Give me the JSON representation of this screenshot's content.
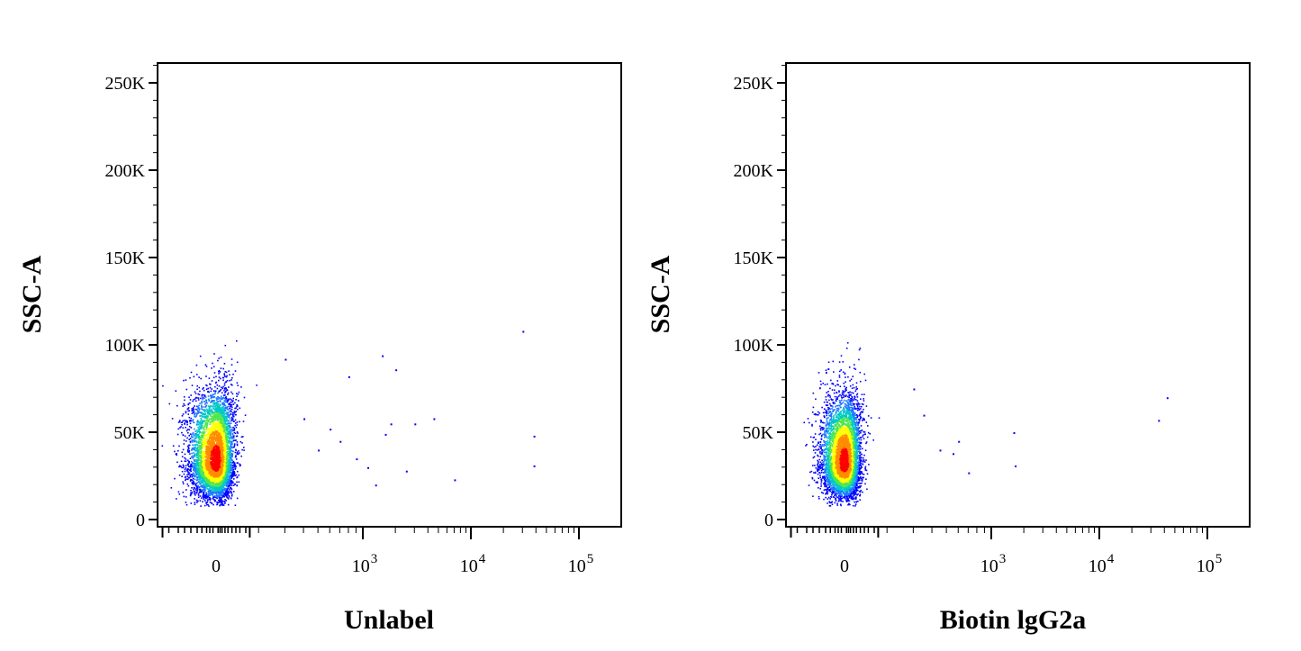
{
  "chart_data": [
    {
      "type": "scatter",
      "title": "",
      "xlabel": "Unlabel",
      "ylabel": "SSC-A",
      "x_scale": "biexponential",
      "y_ticks": [
        {
          "value": 0,
          "label": "0"
        },
        {
          "value": 50000,
          "label": "50K"
        },
        {
          "value": 100000,
          "label": "100K"
        },
        {
          "value": 150000,
          "label": "150K"
        },
        {
          "value": 200000,
          "label": "200K"
        },
        {
          "value": 250000,
          "label": "250K"
        }
      ],
      "x_ticks": [
        {
          "value": 0,
          "base": "0",
          "exp": ""
        },
        {
          "value": 1000,
          "base": "10",
          "exp": "3"
        },
        {
          "value": 10000,
          "base": "10",
          "exp": "4"
        },
        {
          "value": 100000,
          "base": "10",
          "exp": "5"
        }
      ],
      "ylim": [
        0,
        262144
      ],
      "population": {
        "x_center": 0,
        "y_center": 33000,
        "x_spread": 40,
        "y_spread": 14000,
        "events": 6000
      },
      "outliers": [
        [
          400,
          58000
        ],
        [
          600,
          52000
        ],
        [
          700,
          45000
        ],
        [
          800,
          82000
        ],
        [
          900,
          35000
        ],
        [
          1100,
          30000
        ],
        [
          1500,
          94000
        ],
        [
          1800,
          55000
        ],
        [
          2000,
          86000
        ],
        [
          2500,
          28000
        ],
        [
          3000,
          55000
        ],
        [
          4500,
          58000
        ],
        [
          7000,
          23000
        ],
        [
          30000,
          108000
        ],
        [
          38000,
          48000
        ],
        [
          38000,
          31000
        ],
        [
          500,
          40000
        ],
        [
          1300,
          20000
        ],
        [
          1600,
          49000
        ],
        [
          300,
          92000
        ]
      ],
      "colors": {
        "low": "#0000ff",
        "mid": "#00c8c8",
        "high": "#ffff00",
        "peak": "#ff0000"
      }
    },
    {
      "type": "scatter",
      "title": "",
      "xlabel": "Biotin lgG2a",
      "ylabel": "SSC-A",
      "x_scale": "biexponential",
      "y_ticks": [
        {
          "value": 0,
          "label": "0"
        },
        {
          "value": 50000,
          "label": "50K"
        },
        {
          "value": 100000,
          "label": "100K"
        },
        {
          "value": 150000,
          "label": "150K"
        },
        {
          "value": 200000,
          "label": "200K"
        },
        {
          "value": 250000,
          "label": "250K"
        }
      ],
      "x_ticks": [
        {
          "value": 0,
          "base": "0",
          "exp": ""
        },
        {
          "value": 1000,
          "base": "10",
          "exp": "3"
        },
        {
          "value": 10000,
          "base": "10",
          "exp": "4"
        },
        {
          "value": 100000,
          "base": "10",
          "exp": "5"
        }
      ],
      "ylim": [
        0,
        262144
      ],
      "population": {
        "x_center": 0,
        "y_center": 32000,
        "x_spread": 35,
        "y_spread": 13000,
        "events": 6000
      },
      "outliers": [
        [
          350,
          60000
        ],
        [
          450,
          40000
        ],
        [
          550,
          38000
        ],
        [
          600,
          45000
        ],
        [
          700,
          27000
        ],
        [
          1600,
          50000
        ],
        [
          1650,
          31000
        ],
        [
          35000,
          57000
        ],
        [
          42000,
          70000
        ],
        [
          300,
          75000
        ]
      ],
      "colors": {
        "low": "#0000ff",
        "mid": "#00c8c8",
        "high": "#ffff00",
        "peak": "#ff0000"
      }
    }
  ]
}
